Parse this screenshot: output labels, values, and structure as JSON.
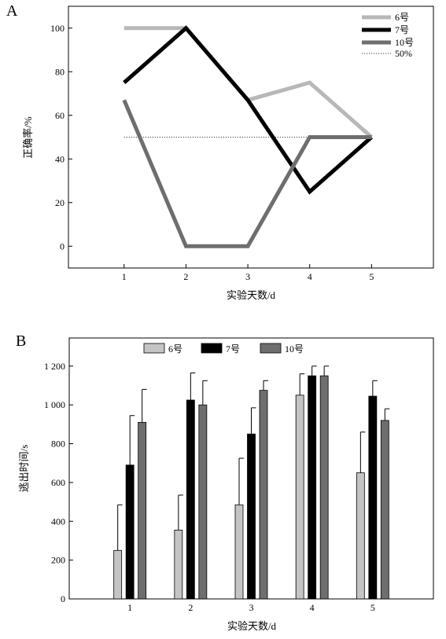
{
  "chart_data": [
    {
      "panel_label": "A",
      "type": "line",
      "x": [
        1,
        2,
        3,
        4,
        5
      ],
      "xlabel": "实验天数/d",
      "ylabel": "正确率/%",
      "xlim": [
        0.1,
        6
      ],
      "ylim": [
        -10,
        110
      ],
      "yticks": [
        "0",
        "20",
        "40",
        "60",
        "80",
        "100"
      ],
      "xticks": [
        "1",
        "2",
        "3",
        "4",
        "5"
      ],
      "legend_position": "top-right",
      "grid": false,
      "series": [
        {
          "name": "6号",
          "values": [
            100,
            100,
            67,
            75,
            50
          ],
          "color": "#b8b8b8"
        },
        {
          "name": "7号",
          "values": [
            75,
            100,
            67,
            25,
            50
          ],
          "color": "#000000"
        },
        {
          "name": "10号",
          "values": [
            67,
            0,
            0,
            50,
            50
          ],
          "color": "#6e6e6e"
        }
      ],
      "reference_line": {
        "name": "50%",
        "value": 50,
        "x_range": [
          1,
          5
        ],
        "style": "dotted"
      }
    },
    {
      "panel_label": "B",
      "type": "bar",
      "categories": [
        "1",
        "2",
        "3",
        "4",
        "5"
      ],
      "xlabel": "实验天数/d",
      "ylabel": "逃出时间/s",
      "xlim": [
        0,
        6
      ],
      "ylim": [
        0,
        1200
      ],
      "yticks": [
        "0",
        "200",
        "400",
        "600",
        "800",
        "1 000",
        "1 200"
      ],
      "legend_position": "top-left",
      "grid": false,
      "series": [
        {
          "name": "6号",
          "values": [
            250,
            355,
            485,
            1050,
            650
          ],
          "errors": [
            235,
            180,
            240,
            110,
            210
          ],
          "color": "#c4c4c4"
        },
        {
          "name": "7号",
          "values": [
            690,
            1025,
            850,
            1150,
            1045
          ],
          "errors": [
            255,
            140,
            135,
            50,
            80
          ],
          "color": "#000000"
        },
        {
          "name": "10号",
          "values": [
            910,
            1000,
            1075,
            1150,
            920
          ],
          "errors": [
            170,
            125,
            50,
            50,
            60
          ],
          "color": "#6e6e6e"
        }
      ]
    }
  ]
}
